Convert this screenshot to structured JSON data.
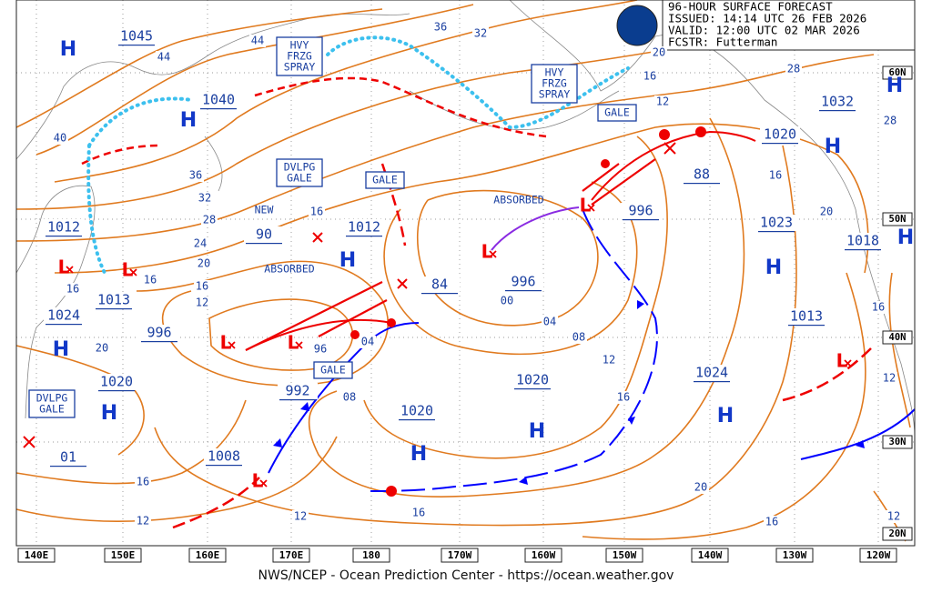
{
  "header": {
    "lines": [
      "96-HOUR SURFACE FORECAST",
      "ISSUED: 14:14 UTC 26 FEB 2026",
      "VALID:  12:00 UTC 02 MAR 2026",
      "FCSTR:  Futterman"
    ]
  },
  "footer": "NWS/NCEP - Ocean Prediction Center - https://ocean.weather.gov",
  "longitudes": [
    "140E",
    "150E",
    "160E",
    "170E",
    "180",
    "170W",
    "160W",
    "150W",
    "140W",
    "130W",
    "120W"
  ],
  "latitudes": [
    "60N",
    "50N",
    "40N",
    "30N",
    "20N"
  ],
  "pressure_labels": [
    "1045",
    "1040",
    "1012",
    "1013",
    "1024",
    "1020",
    "996",
    "992",
    "1008",
    "90",
    "1012",
    "84",
    "996",
    "996",
    "88",
    "1020",
    "1032",
    "1023",
    "1018",
    "1013",
    "1024",
    "1020",
    "1020",
    "01"
  ],
  "isobar_labels": [
    "44",
    "44",
    "36",
    "32",
    "40",
    "36",
    "32",
    "28",
    "24",
    "20",
    "16",
    "12",
    "16",
    "16",
    "20",
    "16",
    "04",
    "96",
    "08",
    "00",
    "04",
    "08",
    "12",
    "16",
    "12",
    "16",
    "20",
    "28",
    "28",
    "16",
    "20",
    "16",
    "12",
    "20",
    "16",
    "16",
    "12",
    "12",
    "16",
    "12"
  ],
  "highs": [
    "H",
    "H",
    "H",
    "H",
    "H",
    "H",
    "H",
    "H",
    "H",
    "H",
    "H",
    "H"
  ],
  "lows": [
    "L",
    "L",
    "L",
    "L",
    "L",
    "L",
    "L",
    "L"
  ],
  "annotations": [
    {
      "lines": [
        "HVY",
        "FRZG",
        "SPRAY"
      ]
    },
    {
      "lines": [
        "HVY",
        "FRZG",
        "SPRAY"
      ]
    },
    {
      "lines": [
        "GALE"
      ]
    },
    {
      "lines": [
        "DVLPG",
        "GALE"
      ]
    },
    {
      "lines": [
        "GALE"
      ]
    },
    {
      "lines": [
        "GALE"
      ]
    },
    {
      "lines": [
        "DVLPG",
        "GALE"
      ]
    },
    {
      "lines": [
        "NEW"
      ]
    },
    {
      "lines": [
        "ABSORBED"
      ]
    },
    {
      "lines": [
        "ABSORBED"
      ]
    }
  ]
}
